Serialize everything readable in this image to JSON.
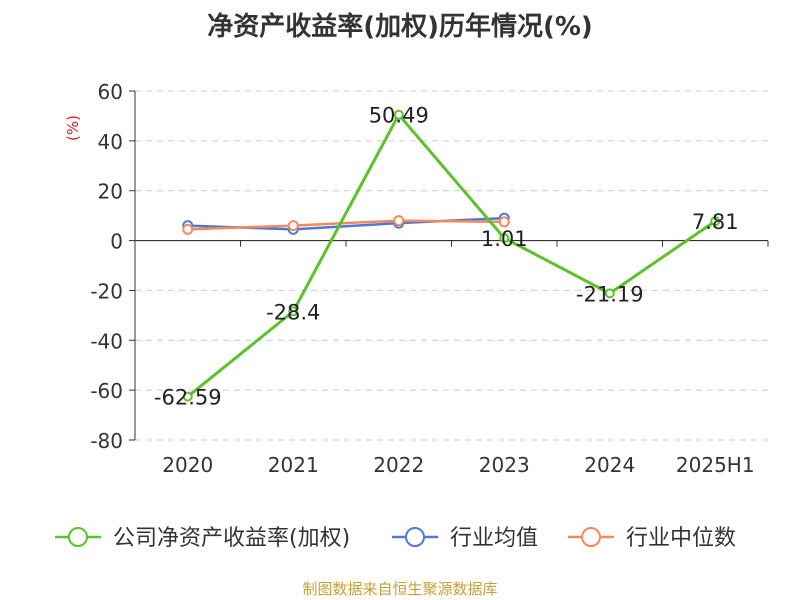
{
  "chart_data": {
    "type": "line",
    "title": "净资产收益率(加权)历年情况(%)",
    "ylabel": "(%)",
    "categories": [
      "2020",
      "2021",
      "2022",
      "2023",
      "2024",
      "2025H1"
    ],
    "ylim": [
      -80,
      60
    ],
    "yticks": [
      "60",
      "40",
      "20",
      "0",
      "-20",
      "-40",
      "-60",
      "-80"
    ],
    "grid": true,
    "legend_position": "bottom",
    "series": [
      {
        "name": "公司净资产收益率(加权)",
        "color": "#5bc22a",
        "values": [
          -62.59,
          -28.4,
          50.49,
          1.01,
          -21.19,
          7.81
        ],
        "labels": [
          "-62.59",
          "-28.4",
          "50.49",
          "1.01",
          "-21.19",
          "7.81"
        ]
      },
      {
        "name": "行业均值",
        "color": "#4e79d6",
        "values": [
          6.0,
          4.5,
          7.0,
          9.0,
          null,
          null
        ]
      },
      {
        "name": "行业中位数",
        "color": "#f28a5a",
        "values": [
          4.5,
          6.0,
          8.0,
          7.5,
          null,
          null
        ]
      }
    ]
  },
  "source": "制图数据来自恒生聚源数据库"
}
